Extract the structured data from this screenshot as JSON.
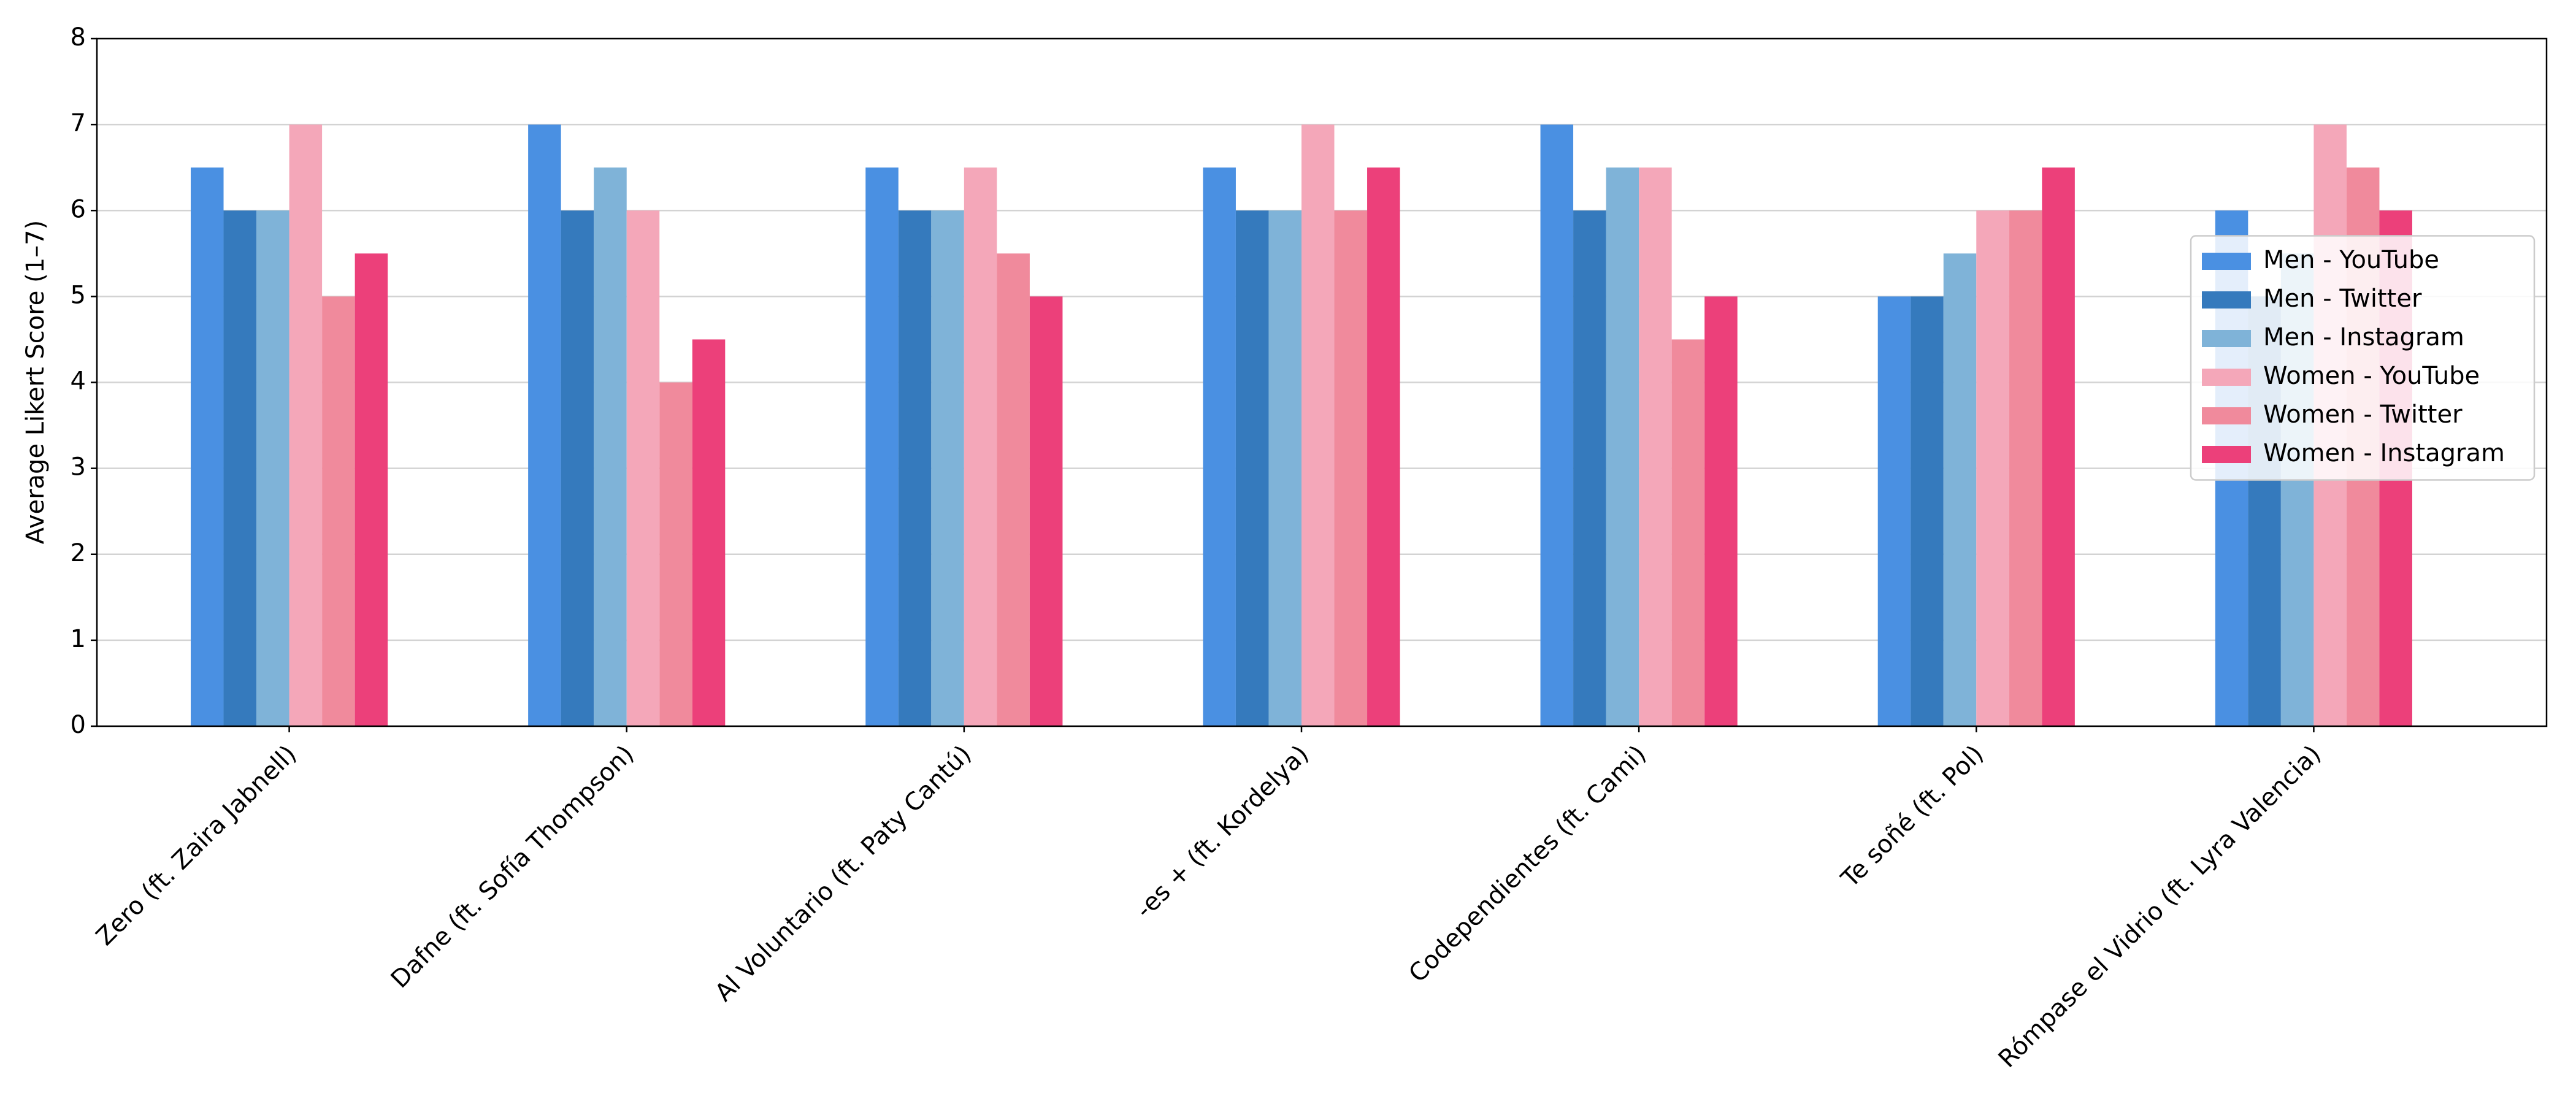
{
  "chart_data": {
    "type": "bar",
    "ylabel": "Average Likert Score (1–7)",
    "categories": [
      "Zero (ft. Zaira Jabnell)",
      "Dafne (ft. Sofía Thompson)",
      "Al Voluntario (ft. Paty Cantú)",
      "-es + (ft. Kordelya)",
      "Codependientes (ft. Cami)",
      "Te soñé (ft. Pol)",
      "Rómpase el Vidrio (ft. Lyra Valencia)"
    ],
    "series": [
      {
        "name": "Men - YouTube",
        "color": "#4a90e2",
        "values": [
          6.5,
          7,
          6.5,
          6.5,
          7,
          5,
          6
        ]
      },
      {
        "name": "Men - Twitter",
        "color": "#357abd",
        "values": [
          6,
          6,
          6,
          6,
          6,
          5,
          5
        ]
      },
      {
        "name": "Men - Instagram",
        "color": "#7fb3d8",
        "values": [
          6,
          6.5,
          6,
          6,
          6.5,
          5.5,
          5.5
        ]
      },
      {
        "name": "Women - YouTube",
        "color": "#f4a7b9",
        "values": [
          7,
          6,
          6.5,
          7,
          6.5,
          6,
          7
        ]
      },
      {
        "name": "Women - Twitter",
        "color": "#f08a9c",
        "values": [
          5,
          4,
          5.5,
          6,
          4.5,
          6,
          6.5
        ]
      },
      {
        "name": "Women - Instagram",
        "color": "#ec407a",
        "values": [
          5.5,
          4.5,
          5,
          6.5,
          5,
          6.5,
          6
        ]
      }
    ],
    "ylim": [
      0,
      8
    ],
    "yticks": [
      0,
      1,
      2,
      3,
      4,
      5,
      6,
      7,
      8
    ],
    "grid": true,
    "legend": "center right"
  }
}
